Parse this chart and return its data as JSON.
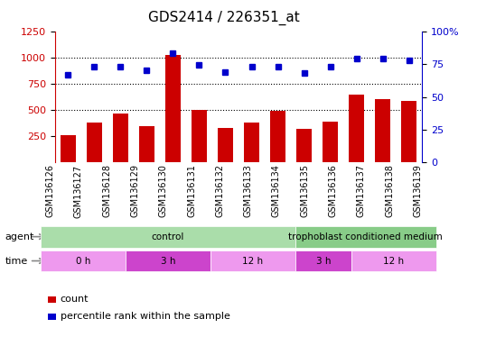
{
  "title": "GDS2414 / 226351_at",
  "samples": [
    "GSM136126",
    "GSM136127",
    "GSM136128",
    "GSM136129",
    "GSM136130",
    "GSM136131",
    "GSM136132",
    "GSM136133",
    "GSM136134",
    "GSM136135",
    "GSM136136",
    "GSM136137",
    "GSM136138",
    "GSM136139"
  ],
  "counts": [
    260,
    385,
    465,
    350,
    1020,
    500,
    330,
    380,
    490,
    320,
    390,
    650,
    600,
    590
  ],
  "percentile_ranks": [
    67,
    73,
    73,
    70,
    83,
    74,
    69,
    73,
    73,
    68,
    73,
    79,
    79,
    78
  ],
  "bar_color": "#cc0000",
  "dot_color": "#0000cc",
  "ylim_left": [
    0,
    1250
  ],
  "ylim_right": [
    0,
    100
  ],
  "yticks_left": [
    250,
    500,
    750,
    1000,
    1250
  ],
  "yticks_right": [
    0,
    25,
    50,
    75,
    100
  ],
  "grid_dotted_values": [
    500,
    750,
    1000
  ],
  "agent_groups": [
    {
      "label": "control",
      "start": 0,
      "end": 9,
      "color": "#aaddaa"
    },
    {
      "label": "trophoblast conditioned medium",
      "start": 9,
      "end": 14,
      "color": "#88cc88"
    }
  ],
  "time_groups": [
    {
      "label": "0 h",
      "start": 0,
      "end": 3,
      "color": "#ee99ee"
    },
    {
      "label": "3 h",
      "start": 3,
      "end": 6,
      "color": "#cc44cc"
    },
    {
      "label": "12 h",
      "start": 6,
      "end": 9,
      "color": "#ee99ee"
    },
    {
      "label": "3 h",
      "start": 9,
      "end": 11,
      "color": "#cc44cc"
    },
    {
      "label": "12 h",
      "start": 11,
      "end": 14,
      "color": "#ee99ee"
    }
  ],
  "bg_color": "#ffffff",
  "axis_left_color": "#cc0000",
  "axis_right_color": "#0000cc",
  "title_fontsize": 11,
  "tick_fontsize": 8,
  "label_fontsize": 8
}
